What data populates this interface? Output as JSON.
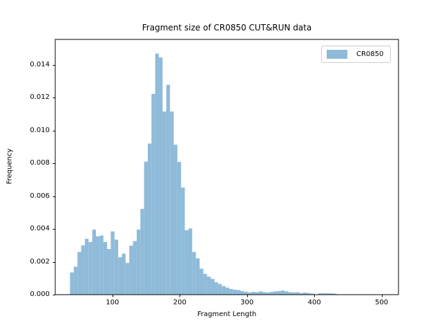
{
  "chart_data": {
    "type": "bar",
    "subtype": "histogram",
    "title": "Fragment size of CR0850 CUT&RUN data",
    "xlabel": "Fragment Length",
    "ylabel": "Frequency",
    "legend": {
      "label": "CR0850",
      "position": "upper right"
    },
    "bar_color": "#8fbbd9",
    "axis_color": "#000000",
    "legend_edge_color": "#cccccc",
    "grid": false,
    "xlim": [
      15,
      525
    ],
    "ylim": [
      0,
      0.01554
    ],
    "xticks": {
      "values": [
        100,
        200,
        300,
        400,
        500
      ],
      "labels": [
        "100",
        "200",
        "300",
        "400",
        "500"
      ]
    },
    "yticks": {
      "values": [
        0.0,
        0.002,
        0.004,
        0.006,
        0.008,
        0.01,
        0.012,
        0.014
      ],
      "labels": [
        "0.000",
        "0.002",
        "0.004",
        "0.006",
        "0.008",
        "0.010",
        "0.012",
        "0.014"
      ]
    },
    "bins": {
      "start": 37,
      "width": 5.5
    },
    "values": [
      0.00135,
      0.0017,
      0.0026,
      0.003,
      0.0034,
      0.0032,
      0.00396,
      0.00355,
      0.0036,
      0.0032,
      0.00278,
      0.00385,
      0.00335,
      0.00228,
      0.0025,
      0.00193,
      0.00298,
      0.00326,
      0.00396,
      0.00522,
      0.0081,
      0.0092,
      0.01222,
      0.01468,
      0.01445,
      0.01115,
      0.01278,
      0.01115,
      0.00913,
      0.00808,
      0.00652,
      0.00392,
      0.00403,
      0.0026,
      0.00221,
      0.00158,
      0.00126,
      0.0011,
      0.00096,
      0.00075,
      0.00065,
      0.00052,
      0.00043,
      0.00035,
      0.0003,
      0.00028,
      0.00022,
      0.00018,
      0.00013,
      0.00017,
      0.00015,
      0.0002,
      0.00015,
      0.00013,
      0.00017,
      0.0002,
      0.00022,
      0.00025,
      0.0002,
      0.00015,
      0.00013,
      0.00015,
      0.0001,
      0.00013,
      0.0001,
      6e-05,
      0.0,
      8e-05,
      8e-05,
      8e-05,
      8e-05,
      6e-05,
      0.0
    ]
  }
}
